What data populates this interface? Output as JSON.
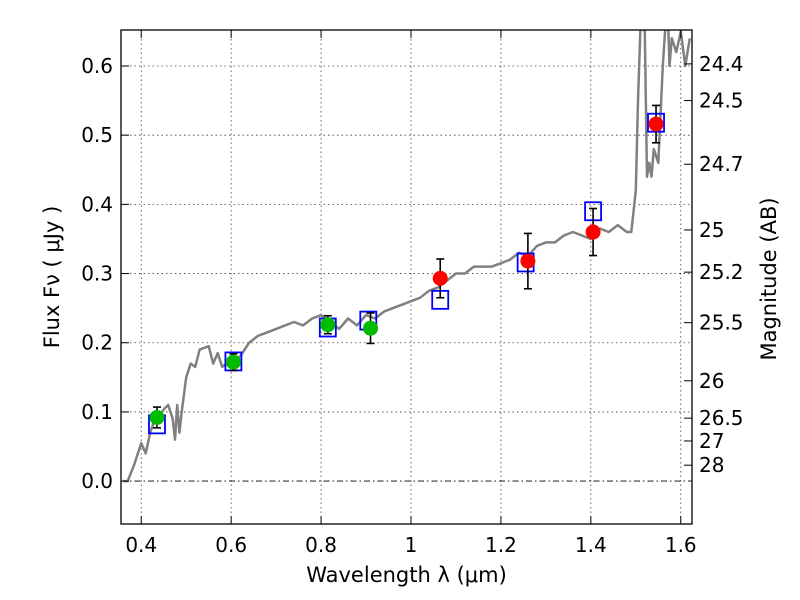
{
  "chart_data": {
    "type": "scatter",
    "xlabel": "Wavelength  λ (μm)",
    "ylabel": "Flux  Fν  ( μJy )",
    "y2label": "Magnitude (AB)",
    "xlim": [
      0.355,
      1.625
    ],
    "ylim": [
      -0.062,
      0.652
    ],
    "x_ticks": [
      0.4,
      0.6,
      0.8,
      1.0,
      1.2,
      1.4,
      1.6
    ],
    "x_tick_labels": [
      "0.4",
      "0.6",
      "0.8",
      "1",
      "1.2",
      "1.4",
      "1.6"
    ],
    "y_ticks": [
      0.0,
      0.1,
      0.2,
      0.3,
      0.4,
      0.5,
      0.6
    ],
    "y_tick_labels": [
      "0.0",
      "0.1",
      "0.2",
      "0.3",
      "0.4",
      "0.5",
      "0.6"
    ],
    "y2_ticks": [
      {
        "label": "24.4",
        "flux": 0.603
      },
      {
        "label": "24.5",
        "flux": 0.55
      },
      {
        "label": "24.7",
        "flux": 0.458
      },
      {
        "label": "25",
        "flux": 0.363
      },
      {
        "label": "25.2",
        "flux": 0.302
      },
      {
        "label": "25.5",
        "flux": 0.229
      },
      {
        "label": "26",
        "flux": 0.145
      },
      {
        "label": "26.5",
        "flux": 0.091
      },
      {
        "label": "27",
        "flux": 0.058
      },
      {
        "label": "28",
        "flux": 0.023
      }
    ],
    "grid": true,
    "horizontal_line_at": 0.0,
    "series": [
      {
        "kind": "line",
        "color": "#808080",
        "x": [
          0.36,
          0.37,
          0.385,
          0.4,
          0.41,
          0.42,
          0.428,
          0.44,
          0.452,
          0.46,
          0.47,
          0.475,
          0.48,
          0.485,
          0.49,
          0.5,
          0.51,
          0.52,
          0.53,
          0.55,
          0.56,
          0.57,
          0.58,
          0.6,
          0.62,
          0.64,
          0.66,
          0.68,
          0.7,
          0.72,
          0.74,
          0.76,
          0.78,
          0.8,
          0.82,
          0.84,
          0.86,
          0.88,
          0.9,
          0.92,
          0.94,
          0.96,
          0.98,
          1.0,
          1.02,
          1.04,
          1.06,
          1.08,
          1.1,
          1.12,
          1.14,
          1.16,
          1.18,
          1.2,
          1.22,
          1.24,
          1.26,
          1.28,
          1.3,
          1.32,
          1.34,
          1.36,
          1.38,
          1.4,
          1.42,
          1.44,
          1.46,
          1.48,
          1.49,
          1.5,
          1.505,
          1.51,
          1.515,
          1.52,
          1.525,
          1.53,
          1.535,
          1.54,
          1.55,
          1.56,
          1.57,
          1.575,
          1.58,
          1.59,
          1.6,
          1.61,
          1.62
        ],
        "y": [
          0.0,
          0.0,
          0.025,
          0.055,
          0.04,
          0.07,
          0.085,
          0.095,
          0.105,
          0.11,
          0.09,
          0.06,
          0.11,
          0.07,
          0.1,
          0.15,
          0.17,
          0.165,
          0.19,
          0.195,
          0.17,
          0.185,
          0.165,
          0.175,
          0.18,
          0.2,
          0.21,
          0.215,
          0.22,
          0.225,
          0.23,
          0.225,
          0.235,
          0.24,
          0.23,
          0.22,
          0.235,
          0.225,
          0.24,
          0.235,
          0.245,
          0.25,
          0.255,
          0.26,
          0.265,
          0.275,
          0.28,
          0.29,
          0.3,
          0.3,
          0.31,
          0.31,
          0.31,
          0.315,
          0.32,
          0.33,
          0.325,
          0.34,
          0.345,
          0.345,
          0.355,
          0.36,
          0.355,
          0.35,
          0.365,
          0.36,
          0.37,
          0.36,
          0.36,
          0.42,
          0.55,
          0.65,
          0.66,
          0.65,
          0.44,
          0.46,
          0.44,
          0.48,
          0.46,
          0.6,
          0.7,
          0.6,
          0.64,
          0.62,
          0.65,
          0.6,
          0.64
        ]
      },
      {
        "kind": "open-square",
        "color": "#0000ff",
        "x": [
          0.435,
          0.605,
          0.815,
          0.905,
          1.065,
          1.255,
          1.405,
          1.545
        ],
        "y": [
          0.082,
          0.173,
          0.222,
          0.232,
          0.262,
          0.316,
          0.39,
          0.518
        ]
      },
      {
        "kind": "filled-circle",
        "color": "#00bb00",
        "x": [
          0.435,
          0.605,
          0.815,
          0.91
        ],
        "y": [
          0.092,
          0.172,
          0.226,
          0.221
        ],
        "err": [
          0.015,
          0.012,
          0.013,
          0.022
        ]
      },
      {
        "kind": "filled-circle",
        "color": "#ff0000",
        "x": [
          1.065,
          1.26,
          1.405,
          1.545
        ],
        "y": [
          0.293,
          0.318,
          0.36,
          0.516
        ],
        "err": [
          0.028,
          0.04,
          0.034,
          0.027
        ]
      }
    ]
  }
}
